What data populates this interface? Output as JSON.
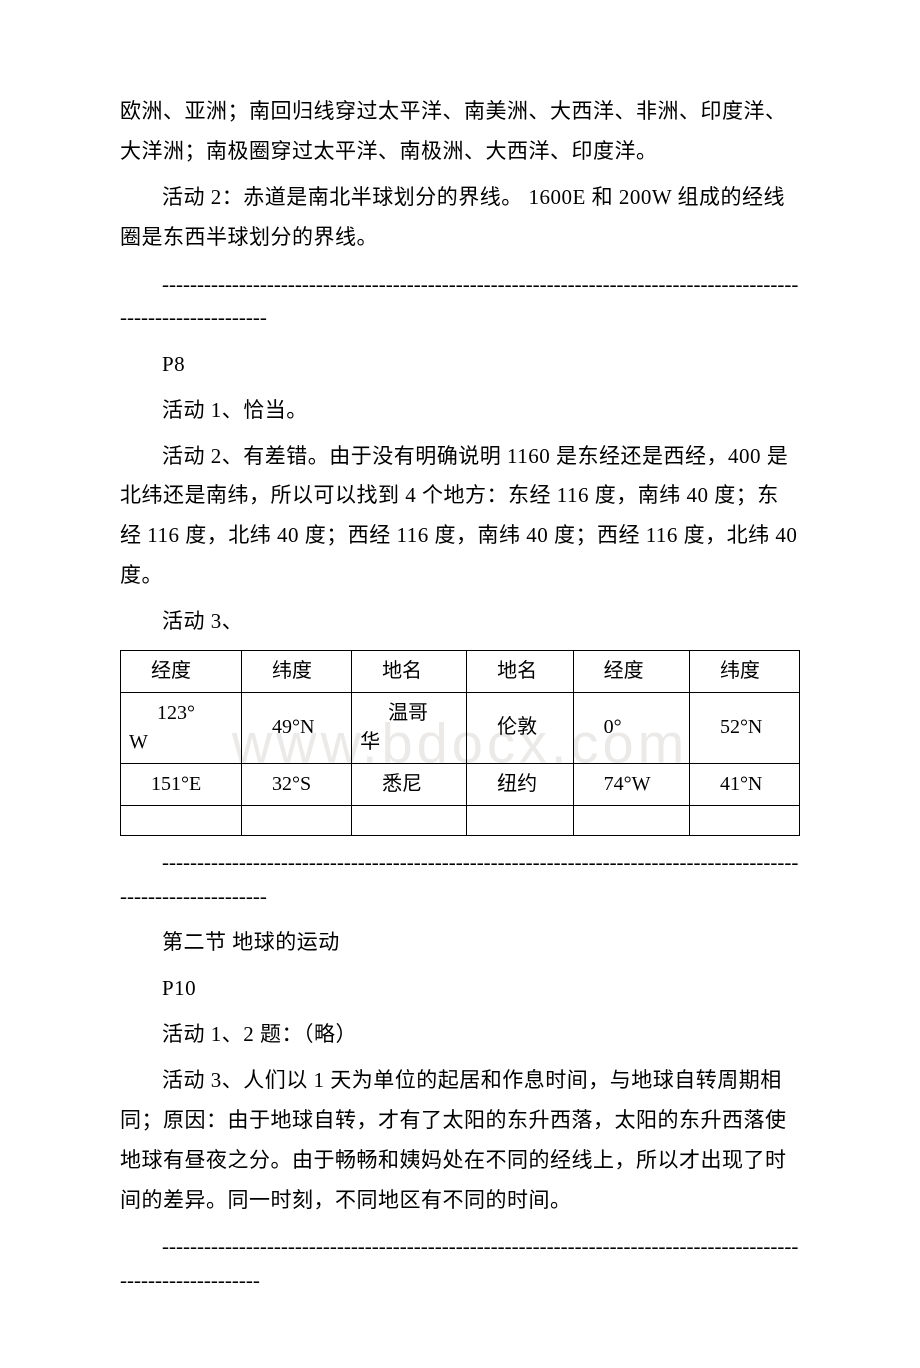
{
  "p1": "欧洲、亚洲；南回归线穿过太平洋、南美洲、大西洋、非洲、印度洋、大洋洲；南极圈穿过太平洋、南极洲、大西洋、印度洋。",
  "p2": "活动 2：赤道是南北半球划分的界线。 1600E 和 200W 组成的经线圈是东西半球划分的界线。",
  "divider1": "----------------------------------------------------------------------------------------------------------------",
  "p3": "P8",
  "p4": "活动 1、恰当。",
  "p5": "活动 2、有差错。由于没有明确说明 1160 是东经还是西经，400 是北纬还是南纬，所以可以找到 4 个地方：东经 116 度，南纬 40 度；东经 116 度，北纬 40 度；西经 116 度，南纬 40 度；西经 116 度，北纬 40 度。",
  "p6": "活动 3、",
  "table": {
    "header": [
      "经度",
      "纬度",
      "地名",
      "地名",
      "经度",
      "纬度"
    ],
    "row1": {
      "c1a": "123°",
      "c1b": "W",
      "c2": "49°N",
      "c3a": "温哥",
      "c3b": "华",
      "c4": "伦敦",
      "c5": "0°",
      "c6": "52°N"
    },
    "row2": [
      "151°E",
      "32°S",
      "悉尼",
      "纽约",
      "74°W",
      "41°N"
    ]
  },
  "watermark": "www.bdocx.com",
  "divider2": "----------------------------------------------------------------------------------------------------------------",
  "p7": "第二节 地球的运动",
  "p8": "P10",
  "p9": "活动 1、2 题：（略）",
  "p10": "活动 3、人们以 1 天为单位的起居和作息时间，与地球自转周期相同；原因：由于地球自转，才有了太阳的东升西落，太阳的东升西落使地球有昼夜之分。由于畅畅和姨妈处在不同的经线上，所以才出现了时间的差异。同一时刻，不同地区有不同的时间。",
  "divider3": "---------------------------------------------------------------------------------------------------------------"
}
